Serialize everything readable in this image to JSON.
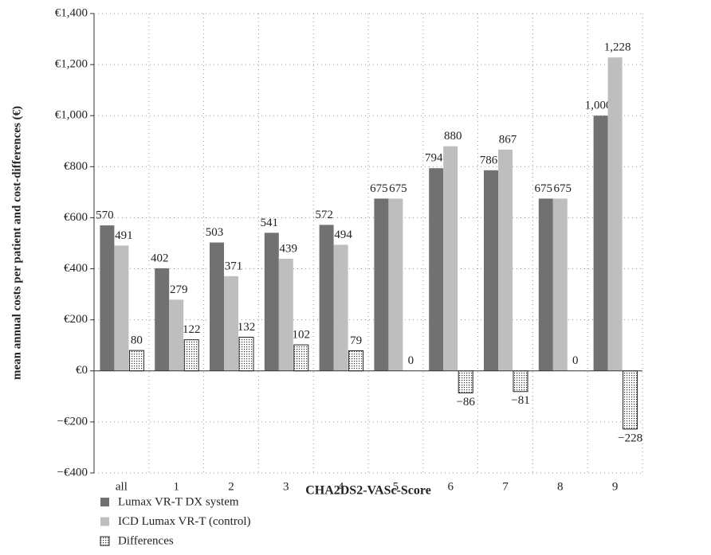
{
  "chart_data": {
    "type": "bar",
    "xlabel": "CHA2DS2-VASc-Score",
    "ylabel": "mean annual costs per patient and cost-differences (€)",
    "categories": [
      "all",
      "1",
      "2",
      "3",
      "4",
      "5",
      "6",
      "7",
      "8",
      "9"
    ],
    "series": [
      {
        "name": "Lumax VR-T DX system",
        "color": "#717171",
        "values": [
          570,
          402,
          503,
          541,
          572,
          675,
          794,
          786,
          675,
          1000
        ],
        "value_labels": [
          "570",
          "402",
          "503",
          "541",
          "572",
          "675",
          "794",
          "786",
          "675",
          "1,000"
        ]
      },
      {
        "name": "ICD Lumax VR-T (control)",
        "color": "#bebebe",
        "values": [
          491,
          279,
          371,
          439,
          494,
          675,
          880,
          867,
          675,
          1228
        ],
        "value_labels": [
          "491",
          "279",
          "371",
          "439",
          "494",
          "675",
          "880",
          "867",
          "675",
          "1,228"
        ]
      },
      {
        "name": "Differences",
        "color": "#ffffff",
        "pattern": "dots",
        "values": [
          80,
          122,
          132,
          102,
          79,
          0,
          -86,
          -81,
          0,
          -228
        ],
        "value_labels": [
          "80",
          "122",
          "132",
          "102",
          "79",
          "0",
          "−86",
          "−81",
          "0",
          "−228"
        ]
      }
    ],
    "ylim": [
      -400,
      1400
    ],
    "yticks": [
      {
        "value": -400,
        "label": "−€400"
      },
      {
        "value": -200,
        "label": "−€200"
      },
      {
        "value": 0,
        "label": "€0"
      },
      {
        "value": 200,
        "label": "€200"
      },
      {
        "value": 400,
        "label": "€400"
      },
      {
        "value": 600,
        "label": "€600"
      },
      {
        "value": 800,
        "label": "€800"
      },
      {
        "value": 1000,
        "label": "€1,000"
      },
      {
        "value": 1200,
        "label": "€1,200"
      },
      {
        "value": 1400,
        "label": "€1,400"
      }
    ],
    "grid": true
  }
}
